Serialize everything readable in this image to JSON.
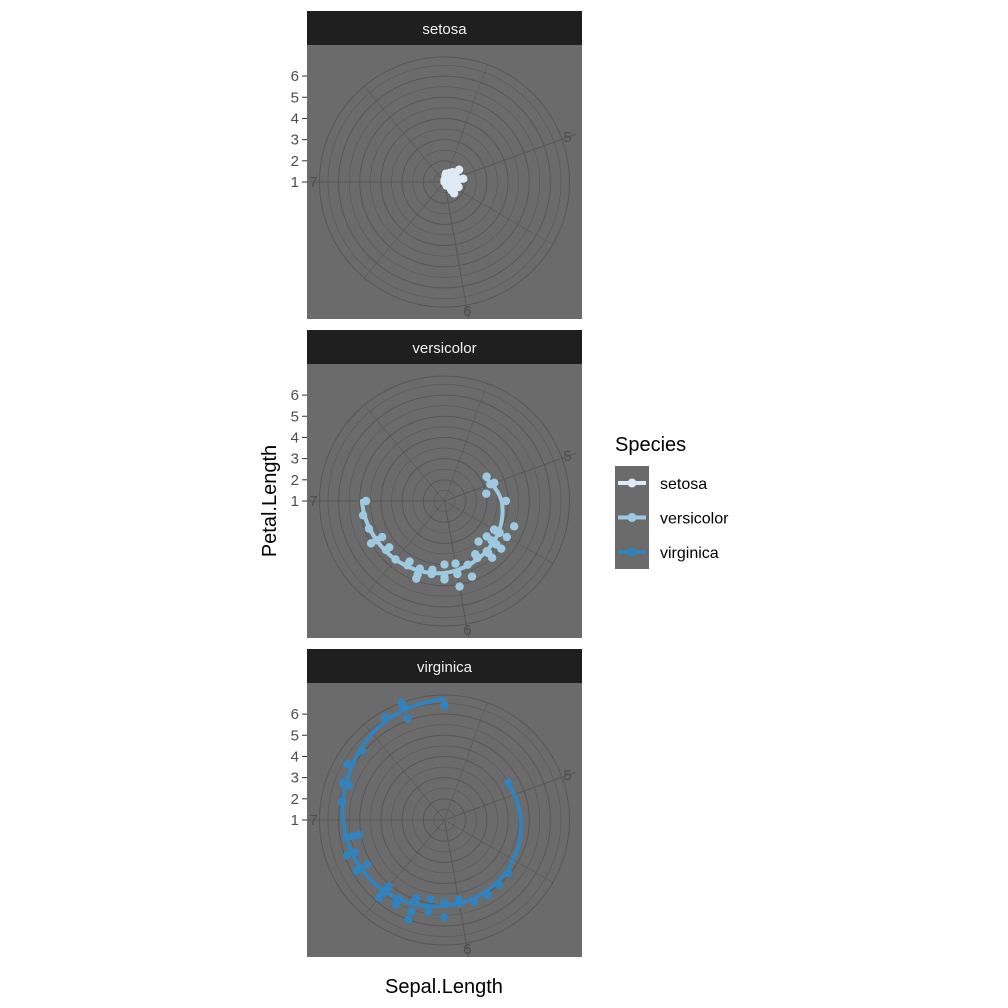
{
  "chart_data": {
    "type": "scatter",
    "coord": "polar",
    "facet_by": "Species",
    "facets": [
      "setosa",
      "versicolor",
      "virginica"
    ],
    "x": {
      "label": "Sepal.Length",
      "range": [
        4.3,
        7.9
      ],
      "tick_labels": [
        "5",
        "6",
        "7"
      ],
      "ticks": [
        5,
        6,
        7
      ]
    },
    "y": {
      "label": "Petal.Length",
      "range": [
        1.0,
        6.9
      ],
      "tick_labels": [
        "1",
        "2",
        "3",
        "4",
        "5",
        "6"
      ],
      "ticks": [
        1,
        2,
        3,
        4,
        5,
        6
      ]
    },
    "legend": {
      "title": "Species",
      "position": "right",
      "entries": [
        "setosa",
        "versicolor",
        "virginica"
      ]
    },
    "colors": {
      "setosa": "#deebf7",
      "versicolor": "#9ecae1",
      "virginica": "#3182bd",
      "panel_background": "#6b6b6b",
      "grid": "#575757",
      "strip_background": "#1f1f1f"
    },
    "series": [
      {
        "name": "setosa",
        "points": [
          [
            5.1,
            1.4
          ],
          [
            4.9,
            1.4
          ],
          [
            4.7,
            1.3
          ],
          [
            4.6,
            1.5
          ],
          [
            5.0,
            1.4
          ],
          [
            5.4,
            1.7
          ],
          [
            4.6,
            1.4
          ],
          [
            5.0,
            1.5
          ],
          [
            4.4,
            1.4
          ],
          [
            4.9,
            1.5
          ],
          [
            5.4,
            1.5
          ],
          [
            4.8,
            1.6
          ],
          [
            4.8,
            1.4
          ],
          [
            4.3,
            1.1
          ],
          [
            5.8,
            1.2
          ],
          [
            5.7,
            1.5
          ],
          [
            5.4,
            1.3
          ],
          [
            5.1,
            1.4
          ],
          [
            5.7,
            1.7
          ],
          [
            5.1,
            1.5
          ],
          [
            5.4,
            1.7
          ],
          [
            5.1,
            1.5
          ],
          [
            4.6,
            1.0
          ],
          [
            5.1,
            1.7
          ],
          [
            4.8,
            1.9
          ],
          [
            5.0,
            1.6
          ],
          [
            5.0,
            1.6
          ],
          [
            5.2,
            1.5
          ],
          [
            5.2,
            1.4
          ],
          [
            4.7,
            1.6
          ],
          [
            4.8,
            1.6
          ],
          [
            5.4,
            1.5
          ],
          [
            5.2,
            1.5
          ],
          [
            5.5,
            1.4
          ],
          [
            4.9,
            1.5
          ],
          [
            5.0,
            1.2
          ],
          [
            5.5,
            1.3
          ],
          [
            4.9,
            1.4
          ],
          [
            4.4,
            1.3
          ],
          [
            5.1,
            1.5
          ],
          [
            5.0,
            1.3
          ],
          [
            4.5,
            1.3
          ],
          [
            4.4,
            1.3
          ],
          [
            5.0,
            1.6
          ],
          [
            5.1,
            1.9
          ],
          [
            4.8,
            1.4
          ],
          [
            5.1,
            1.6
          ],
          [
            4.6,
            1.4
          ],
          [
            5.3,
            1.5
          ],
          [
            5.0,
            1.4
          ]
        ],
        "smooth": [
          [
            4.3,
            1.25
          ],
          [
            4.7,
            1.35
          ],
          [
            5.1,
            1.47
          ],
          [
            5.5,
            1.5
          ],
          [
            5.8,
            1.4
          ]
        ]
      },
      {
        "name": "versicolor",
        "points": [
          [
            7.0,
            4.7
          ],
          [
            6.4,
            4.5
          ],
          [
            6.9,
            4.9
          ],
          [
            5.5,
            4.0
          ],
          [
            6.5,
            4.6
          ],
          [
            5.7,
            4.5
          ],
          [
            6.3,
            4.7
          ],
          [
            4.9,
            3.3
          ],
          [
            6.6,
            4.6
          ],
          [
            5.2,
            3.9
          ],
          [
            5.0,
            3.5
          ],
          [
            5.9,
            4.2
          ],
          [
            6.0,
            4.0
          ],
          [
            6.1,
            4.7
          ],
          [
            5.6,
            3.6
          ],
          [
            6.7,
            4.4
          ],
          [
            5.6,
            4.5
          ],
          [
            5.8,
            4.1
          ],
          [
            6.2,
            4.5
          ],
          [
            5.6,
            3.9
          ],
          [
            5.9,
            4.8
          ],
          [
            6.1,
            4.0
          ],
          [
            6.3,
            4.9
          ],
          [
            6.1,
            4.7
          ],
          [
            6.4,
            4.3
          ],
          [
            6.6,
            4.4
          ],
          [
            6.8,
            4.8
          ],
          [
            6.7,
            5.0
          ],
          [
            6.0,
            4.5
          ],
          [
            5.7,
            3.5
          ],
          [
            5.5,
            3.8
          ],
          [
            5.5,
            3.7
          ],
          [
            5.8,
            3.9
          ],
          [
            6.0,
            5.1
          ],
          [
            5.4,
            4.5
          ],
          [
            6.0,
            4.5
          ],
          [
            6.7,
            4.7
          ],
          [
            6.3,
            4.4
          ],
          [
            5.6,
            4.1
          ],
          [
            5.5,
            4.0
          ],
          [
            5.5,
            4.4
          ],
          [
            6.1,
            4.6
          ],
          [
            5.8,
            4.0
          ],
          [
            5.0,
            3.3
          ],
          [
            5.6,
            4.2
          ],
          [
            5.7,
            4.2
          ],
          [
            5.7,
            4.2
          ],
          [
            6.2,
            4.3
          ],
          [
            5.1,
            3.0
          ],
          [
            5.7,
            4.1
          ]
        ],
        "smooth": [
          [
            4.9,
            3.2
          ],
          [
            5.2,
            3.7
          ],
          [
            5.5,
            3.95
          ],
          [
            5.8,
            4.15
          ],
          [
            6.1,
            4.4
          ],
          [
            6.4,
            4.55
          ],
          [
            6.7,
            4.7
          ],
          [
            7.0,
            4.9
          ]
        ]
      },
      {
        "name": "virginica",
        "points": [
          [
            6.3,
            6.0
          ],
          [
            5.8,
            5.1
          ],
          [
            7.1,
            5.9
          ],
          [
            6.3,
            5.6
          ],
          [
            6.5,
            5.8
          ],
          [
            7.6,
            6.6
          ],
          [
            4.9,
            4.5
          ],
          [
            7.3,
            6.3
          ],
          [
            6.7,
            5.8
          ],
          [
            7.2,
            6.1
          ],
          [
            6.5,
            5.1
          ],
          [
            6.4,
            5.3
          ],
          [
            6.8,
            5.5
          ],
          [
            5.7,
            5.0
          ],
          [
            5.8,
            5.1
          ],
          [
            6.4,
            5.3
          ],
          [
            6.5,
            5.5
          ],
          [
            7.7,
            6.7
          ],
          [
            7.7,
            6.9
          ],
          [
            6.0,
            5.0
          ],
          [
            6.9,
            5.7
          ],
          [
            5.6,
            4.9
          ],
          [
            7.7,
            6.7
          ],
          [
            6.3,
            4.9
          ],
          [
            6.7,
            5.7
          ],
          [
            7.2,
            6.0
          ],
          [
            6.2,
            4.8
          ],
          [
            6.1,
            4.9
          ],
          [
            6.4,
            5.6
          ],
          [
            7.2,
            5.8
          ],
          [
            7.4,
            6.1
          ],
          [
            7.9,
            6.4
          ],
          [
            6.4,
            5.6
          ],
          [
            6.3,
            5.1
          ],
          [
            6.1,
            5.6
          ],
          [
            7.7,
            6.1
          ],
          [
            6.3,
            5.6
          ],
          [
            6.4,
            5.5
          ],
          [
            6.0,
            4.8
          ],
          [
            6.9,
            5.4
          ],
          [
            6.7,
            5.6
          ],
          [
            6.9,
            5.1
          ],
          [
            5.8,
            5.1
          ],
          [
            6.8,
            5.9
          ],
          [
            6.7,
            5.7
          ],
          [
            6.7,
            5.2
          ],
          [
            6.3,
            5.0
          ],
          [
            6.5,
            5.2
          ],
          [
            6.2,
            5.4
          ],
          [
            5.9,
            5.1
          ]
        ],
        "smooth": [
          [
            4.9,
            4.45
          ],
          [
            5.3,
            4.65
          ],
          [
            5.7,
            4.85
          ],
          [
            6.1,
            5.05
          ],
          [
            6.5,
            5.4
          ],
          [
            6.9,
            5.7
          ],
          [
            7.3,
            6.05
          ],
          [
            7.6,
            6.45
          ],
          [
            7.9,
            6.7
          ]
        ]
      }
    ]
  }
}
